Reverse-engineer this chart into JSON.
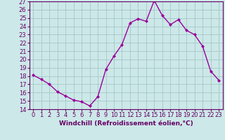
{
  "x": [
    0,
    1,
    2,
    3,
    4,
    5,
    6,
    7,
    8,
    9,
    10,
    11,
    12,
    13,
    14,
    15,
    16,
    17,
    18,
    19,
    20,
    21,
    22,
    23
  ],
  "y": [
    18.1,
    17.6,
    17.0,
    16.1,
    15.6,
    15.1,
    14.9,
    14.4,
    15.5,
    18.8,
    20.4,
    21.8,
    24.4,
    24.9,
    24.6,
    27.1,
    25.3,
    24.2,
    24.8,
    23.5,
    23.0,
    21.6,
    18.6,
    17.5
  ],
  "line_color": "#990099",
  "marker": "D",
  "markersize": 2.0,
  "linewidth": 1.0,
  "bg_color": "#cce8e8",
  "grid_color": "#aacccc",
  "xlabel": "Windchill (Refroidissement éolien,°C)",
  "xlabel_fontsize": 6.5,
  "tick_fontsize": 6.0,
  "ylim": [
    14,
    27
  ],
  "xlim": [
    -0.5,
    23.5
  ],
  "yticks": [
    14,
    15,
    16,
    17,
    18,
    19,
    20,
    21,
    22,
    23,
    24,
    25,
    26,
    27
  ],
  "xticks": [
    0,
    1,
    2,
    3,
    4,
    5,
    6,
    7,
    8,
    9,
    10,
    11,
    12,
    13,
    14,
    15,
    16,
    17,
    18,
    19,
    20,
    21,
    22,
    23
  ]
}
